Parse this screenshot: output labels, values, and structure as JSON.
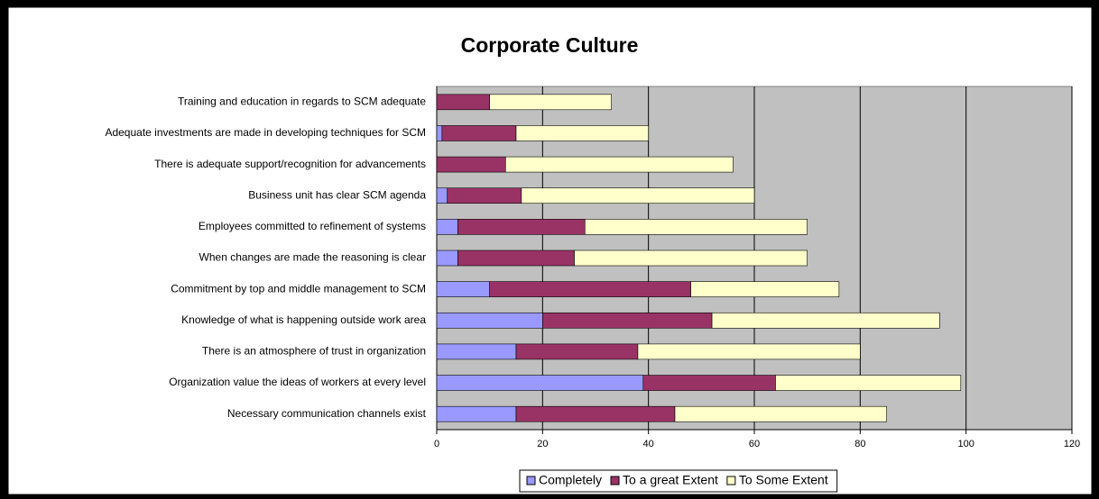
{
  "chart_data": {
    "type": "stacked-bar-horizontal",
    "title": "Corporate Culture",
    "categories": [
      "Training and education in regards to SCM adequate",
      "Adequate investments are made in developing techniques for SCM",
      "There is adequate support/recognition for advancements",
      "Business unit has clear SCM agenda",
      "Employees committed to refinement of systems",
      "When changes are made the reasoning is clear",
      "Commitment by top and middle management to SCM",
      "Knowledge of what is happening outside work area",
      "There is an atmosphere of trust in organization",
      "Organization value the ideas of workers at every level",
      "Necessary communication channels exist"
    ],
    "series": [
      {
        "name": "Completely",
        "color": "#9999ff",
        "values": [
          0,
          1,
          0,
          2,
          4,
          4,
          10,
          20,
          15,
          39,
          15
        ]
      },
      {
        "name": "To a great Extent",
        "color": "#993366",
        "values": [
          10,
          14,
          13,
          14,
          24,
          22,
          38,
          32,
          23,
          25,
          30
        ]
      },
      {
        "name": "To Some Extent",
        "color": "#ffffcc",
        "values": [
          23,
          25,
          43,
          44,
          42,
          44,
          28,
          43,
          42,
          35,
          40
        ]
      }
    ],
    "xlim": [
      0,
      120
    ],
    "xticks": [
      0,
      20,
      40,
      60,
      80,
      100,
      120
    ],
    "grid": true,
    "legend": "bottom"
  }
}
